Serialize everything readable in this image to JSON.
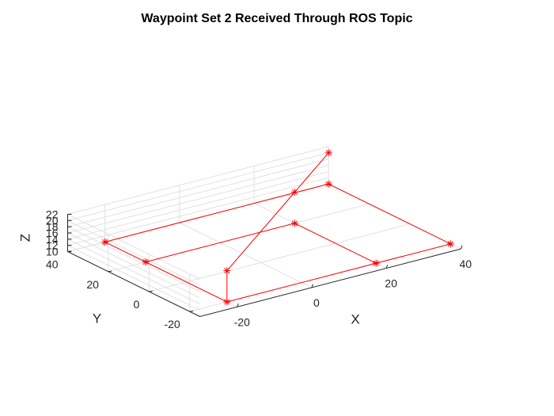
{
  "chart_data": {
    "type": "line3d",
    "title": "Waypoint Set 2 Received Through ROS Topic",
    "xlabel": "X",
    "ylabel": "Y",
    "zlabel": "Z",
    "xlim": [
      -30,
      40
    ],
    "ylim": [
      -25,
      40
    ],
    "zlim": [
      10,
      22
    ],
    "xticks": [
      -20,
      0,
      20,
      40
    ],
    "yticks": [
      -20,
      0,
      20,
      40
    ],
    "zticks": [
      10,
      12,
      14,
      16,
      18,
      20,
      22
    ],
    "grid": true,
    "marker": "*",
    "color": "#ff0000",
    "series": [
      {
        "x": [
          -20,
          40,
          40,
          -20,
          -20,
          20,
          20,
          -20,
          -20,
          -20,
          20,
          20,
          -20,
          -20,
          40,
          40,
          -20
        ],
        "y": [
          -20,
          -20,
          40,
          40,
          -20,
          -20,
          20,
          20,
          -20,
          -20,
          20,
          20,
          -20,
          -20,
          40,
          40,
          -20
        ],
        "z": [
          10,
          10,
          10,
          10,
          10,
          10,
          10,
          10,
          10,
          20,
          20,
          20,
          20,
          20,
          20,
          20,
          20
        ]
      }
    ]
  }
}
